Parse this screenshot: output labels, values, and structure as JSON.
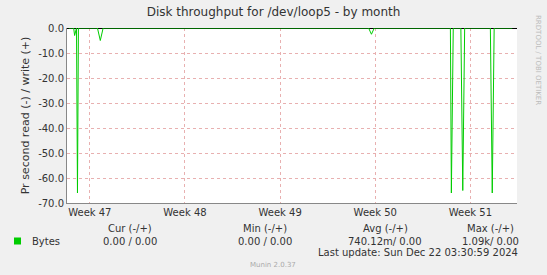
{
  "chart_data": {
    "type": "line",
    "title": "Disk throughput for /dev/loop5 - by month",
    "y_label": "Pr second read (-) / write (+)",
    "x": [
      46.78,
      46.83,
      46.84,
      46.86,
      46.87,
      46.88,
      47.08,
      47.11,
      47.14,
      49.93,
      49.96,
      49.99,
      50.79,
      50.8,
      50.82,
      50.9,
      50.92,
      50.94,
      51.21,
      51.23,
      51.25,
      51.44
    ],
    "series": [
      {
        "name": "Bytes",
        "color": "#00cc00",
        "values": [
          0,
          0,
          -3,
          0,
          -66,
          0,
          0,
          -5,
          0,
          0,
          -2.5,
          0,
          0,
          -66,
          0,
          0,
          -65,
          0,
          0,
          -66,
          0,
          0
        ]
      }
    ],
    "xlim": [
      46.76,
      51.49
    ],
    "xticks": [
      {
        "value": 47,
        "label": "Week 47"
      },
      {
        "value": 48,
        "label": "Week 48"
      },
      {
        "value": 49,
        "label": "Week 49"
      },
      {
        "value": 50,
        "label": "Week 50"
      },
      {
        "value": 51,
        "label": "Week 51"
      }
    ],
    "ylim": [
      -70,
      0
    ],
    "yticks": [
      {
        "value": 0,
        "label": "0.0"
      },
      {
        "value": -10,
        "label": "-10.0"
      },
      {
        "value": -20,
        "label": "-20.0"
      },
      {
        "value": -30,
        "label": "-30.0"
      },
      {
        "value": -40,
        "label": "-40.0"
      },
      {
        "value": -50,
        "label": "-50.0"
      },
      {
        "value": -60,
        "label": "-60.0"
      },
      {
        "value": -70,
        "label": "-70.0"
      }
    ],
    "grid": true,
    "legend_table": {
      "columns": [
        "Cur (-/+)",
        "Min (-/+)",
        "Avg (-/+)",
        "Max (-/+)"
      ],
      "rows": [
        {
          "name": "Bytes",
          "cells": [
            "0.00 / 0.00",
            "0.00 / 0.00",
            "740.12m/ 0.00",
            "1.09k/ 0.00"
          ]
        }
      ]
    },
    "last_update": "Last update: Sun Dec 22 03:30:59 2024",
    "footer": "Munin 2.0.37",
    "side_text": "RRDTOOL / TOBI OETIKER"
  }
}
